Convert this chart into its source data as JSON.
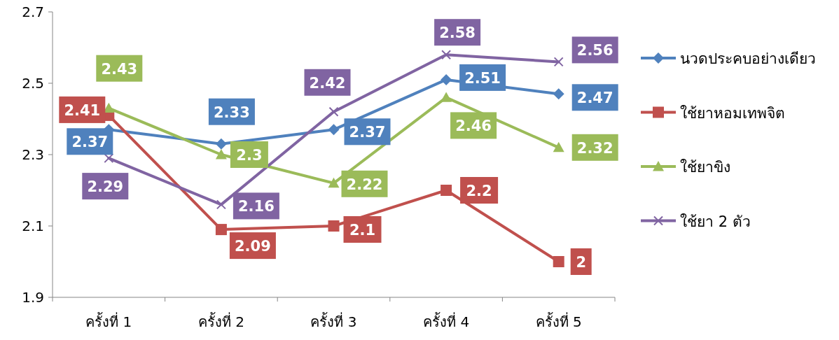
{
  "chart_data": {
    "type": "line",
    "categories": [
      "ครั้งที่ 1",
      "ครั้งที่ 2",
      "ครั้งที่ 3",
      "ครั้งที่ 4",
      "ครั้งที่ 5"
    ],
    "series": [
      {
        "name": "นวดประคบอย่างเดียว",
        "color": "#4f81bd",
        "marker": "diamond",
        "values": [
          2.37,
          2.33,
          2.37,
          2.51,
          2.47
        ]
      },
      {
        "name": "ใช้ยาหอมเทพจิต",
        "color": "#c0504d",
        "marker": "square",
        "values": [
          2.41,
          2.09,
          2.1,
          2.2,
          2
        ]
      },
      {
        "name": "ใช้ยาขิง",
        "color": "#9bbb59",
        "marker": "triangle",
        "values": [
          2.43,
          2.3,
          2.22,
          2.46,
          2.32
        ]
      },
      {
        "name": "ใช้ยา 2 ตัว",
        "color": "#8064a2",
        "marker": "cross",
        "values": [
          2.29,
          2.16,
          2.42,
          2.58,
          2.56
        ]
      }
    ],
    "ylim": [
      1.9,
      2.7
    ],
    "yticks": [
      1.9,
      2.1,
      2.3,
      2.5,
      2.7
    ],
    "grid": false,
    "legend": "right",
    "data_labels": true,
    "line_style": "solid"
  }
}
